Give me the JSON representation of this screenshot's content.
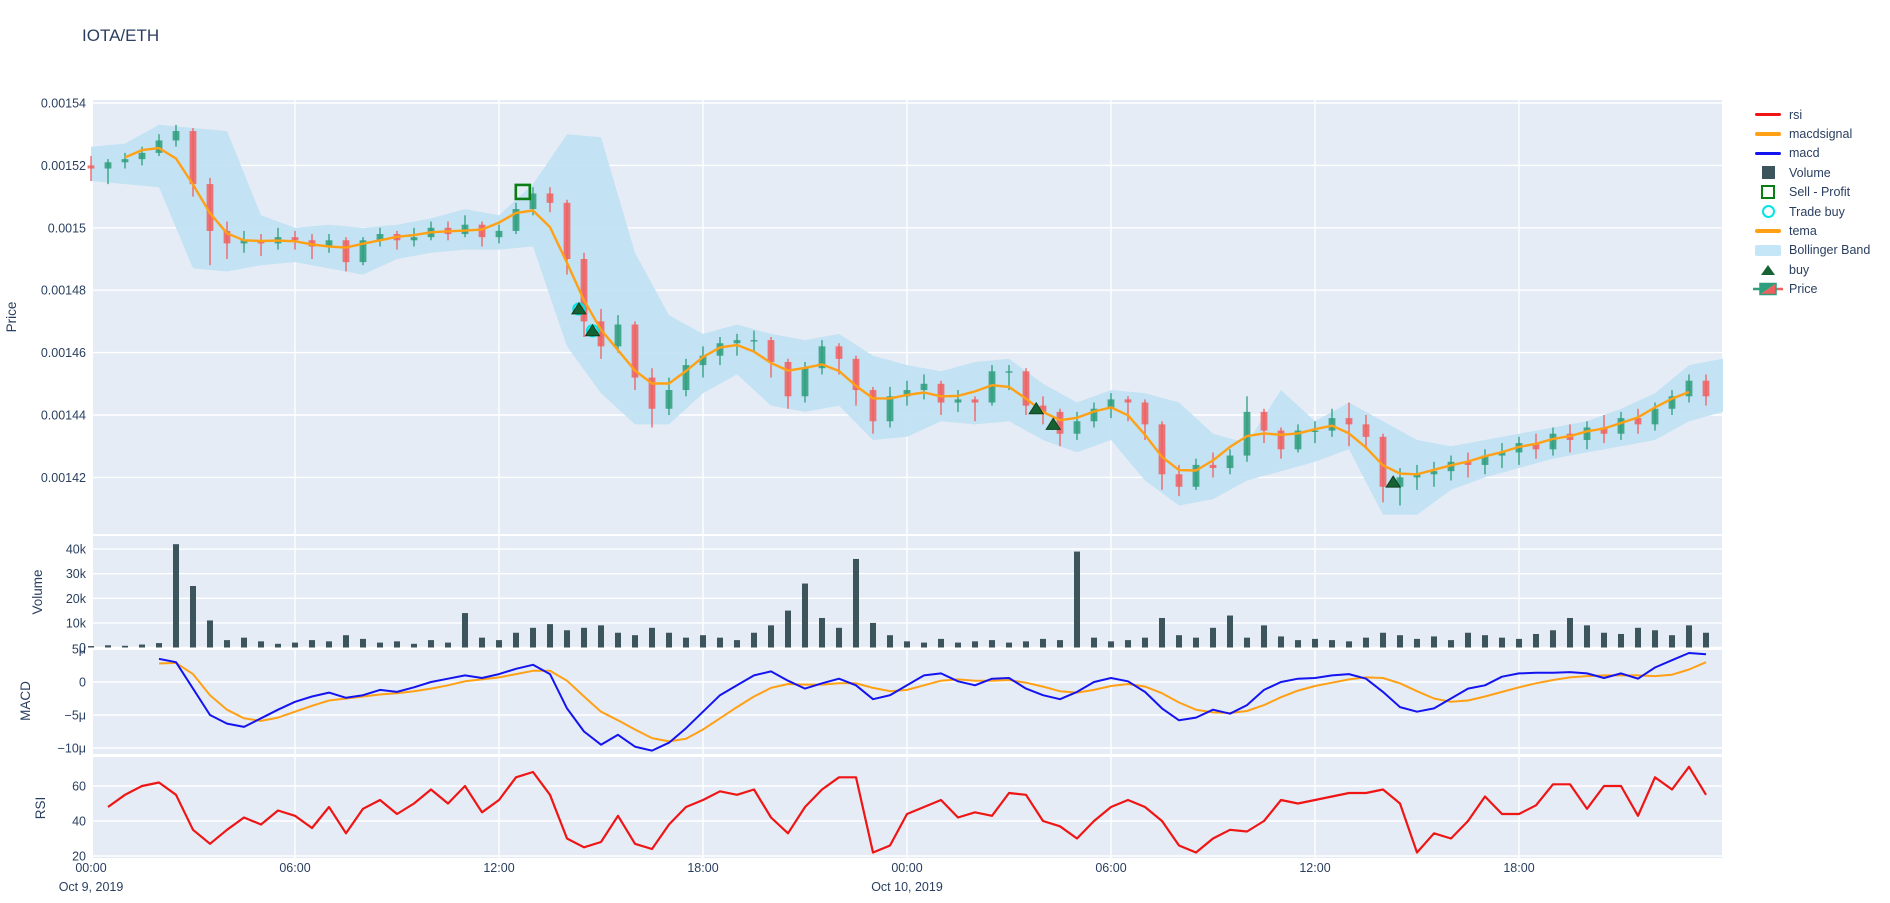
{
  "title": "IOTA/ETH",
  "colors": {
    "paper": "#ffffff",
    "pane_bg": "#e5ecf6",
    "grid": "#ffffff",
    "text": "#2a3f5f",
    "rsi": "#ef1515",
    "macd": "#1414f0",
    "macdsignal": "#ffa015",
    "tema": "#ffa015",
    "volume": "#3c545c",
    "candle_up": "#2e9e7c",
    "candle_down": "#f05f5f",
    "bollinger": "#bfe1f3",
    "sell_profit": "#0b7d15",
    "trade_buy": "#00e5e5",
    "buy": "#176233"
  },
  "x_axis": {
    "tick_labels": [
      "00:00",
      "06:00",
      "12:00",
      "18:00",
      "00:00",
      "06:00",
      "12:00",
      "18:00"
    ],
    "tick_hours": [
      0,
      6,
      12,
      18,
      24,
      30,
      36,
      42
    ],
    "date_labels": [
      {
        "text": "Oct 9, 2019",
        "t": 0
      },
      {
        "text": "Oct 10, 2019",
        "t": 24
      }
    ]
  },
  "price_axis": {
    "title": "Price",
    "tick_labels": [
      "0.00154",
      "0.00152",
      "0.0015",
      "0.00148",
      "0.00146",
      "0.00144",
      "0.00142"
    ],
    "tick_values": [
      1540,
      1520,
      1500,
      1480,
      1460,
      1440,
      1420
    ]
  },
  "volume_axis": {
    "title": "Volume",
    "tick_labels": [
      "40k",
      "30k",
      "20k",
      "10k",
      "0"
    ],
    "tick_values": [
      40000,
      30000,
      20000,
      10000,
      0
    ]
  },
  "macd_axis": {
    "title": "MACD",
    "tick_labels": [
      "5μ",
      "0",
      "−5μ",
      "−10μ"
    ],
    "tick_values": [
      5,
      0,
      -5,
      -10
    ]
  },
  "rsi_axis": {
    "title": "RSI",
    "tick_labels": [
      "60",
      "40",
      "20"
    ],
    "tick_values": [
      60,
      40,
      20
    ]
  },
  "legend": {
    "items": [
      {
        "id": "rsi",
        "label": "rsi",
        "swatch": "line",
        "color": "#ef1515"
      },
      {
        "id": "macdsignal",
        "label": "macdsignal",
        "swatch": "line",
        "color": "#ffa015"
      },
      {
        "id": "macd",
        "label": "macd",
        "swatch": "line",
        "color": "#1414f0"
      },
      {
        "id": "volume",
        "label": "Volume",
        "swatch": "filled-square",
        "color": "#3c545c"
      },
      {
        "id": "sell-profit",
        "label": "Sell - Profit",
        "swatch": "open-square",
        "color": "#0b7d15"
      },
      {
        "id": "trade-buy",
        "label": "Trade buy",
        "swatch": "open-circle",
        "color": "#00e5e5"
      },
      {
        "id": "tema",
        "label": "tema",
        "swatch": "line",
        "color": "#ffa015"
      },
      {
        "id": "bollinger-band",
        "label": "Bollinger Band",
        "swatch": "band",
        "color": "#c5e6f7"
      },
      {
        "id": "buy",
        "label": "buy",
        "swatch": "triangle-up",
        "color": "#176233"
      },
      {
        "id": "price",
        "label": "Price",
        "swatch": "candlestick",
        "color": "#2e9e7c"
      }
    ]
  },
  "chart_data": {
    "type": "candlestick-with-indicators",
    "title": "IOTA/ETH",
    "x_range_hours": [
      0,
      48
    ],
    "x_start_label": "Oct 9, 2019 00:00",
    "price_unit_scale": 1e-06,
    "subplots": [
      "Price",
      "Volume",
      "MACD",
      "RSI"
    ],
    "price_ylim": [
      1402,
      1546
    ],
    "volume_ylim": [
      0,
      46000
    ],
    "macd_ylim": [
      -11.5,
      5.5
    ],
    "rsi_ylim": [
      18,
      78
    ],
    "candles_t_step_hours": 0.5,
    "candles_ohlc": [
      [
        1520,
        1523,
        1515,
        1519
      ],
      [
        1519,
        1522,
        1514,
        1521
      ],
      [
        1521,
        1524,
        1519,
        1522
      ],
      [
        1522,
        1526,
        1520,
        1524
      ],
      [
        1524,
        1530,
        1523,
        1528
      ],
      [
        1528,
        1533,
        1526,
        1531
      ],
      [
        1531,
        1532,
        1510,
        1514
      ],
      [
        1514,
        1516,
        1488,
        1499
      ],
      [
        1499,
        1502,
        1490,
        1495
      ],
      [
        1495,
        1499,
        1492,
        1496
      ],
      [
        1496,
        1498,
        1491,
        1495
      ],
      [
        1495,
        1500,
        1493,
        1497
      ],
      [
        1497,
        1499,
        1493,
        1496
      ],
      [
        1496,
        1498,
        1490,
        1494
      ],
      [
        1494,
        1498,
        1492,
        1496
      ],
      [
        1496,
        1497,
        1486,
        1489
      ],
      [
        1489,
        1497,
        1488,
        1496
      ],
      [
        1496,
        1500,
        1494,
        1498
      ],
      [
        1498,
        1499,
        1493,
        1496
      ],
      [
        1496,
        1500,
        1494,
        1497
      ],
      [
        1497,
        1502,
        1496,
        1500
      ],
      [
        1500,
        1502,
        1496,
        1498
      ],
      [
        1498,
        1504,
        1497,
        1501
      ],
      [
        1501,
        1502,
        1494,
        1497
      ],
      [
        1497,
        1501,
        1495,
        1499
      ],
      [
        1499,
        1508,
        1498,
        1506
      ],
      [
        1506,
        1513,
        1504,
        1511
      ],
      [
        1511,
        1513,
        1505,
        1508
      ],
      [
        1508,
        1509,
        1485,
        1490
      ],
      [
        1490,
        1492,
        1465,
        1470
      ],
      [
        1470,
        1474,
        1458,
        1462
      ],
      [
        1462,
        1472,
        1460,
        1469
      ],
      [
        1469,
        1470,
        1448,
        1452
      ],
      [
        1452,
        1455,
        1436,
        1442
      ],
      [
        1442,
        1452,
        1440,
        1448
      ],
      [
        1448,
        1458,
        1446,
        1456
      ],
      [
        1456,
        1462,
        1452,
        1459
      ],
      [
        1459,
        1465,
        1456,
        1463
      ],
      [
        1463,
        1466,
        1459,
        1464
      ],
      [
        1464,
        1467,
        1460,
        1464
      ],
      [
        1464,
        1465,
        1452,
        1457
      ],
      [
        1457,
        1458,
        1442,
        1446
      ],
      [
        1446,
        1457,
        1444,
        1455
      ],
      [
        1455,
        1464,
        1453,
        1462
      ],
      [
        1462,
        1463,
        1453,
        1458
      ],
      [
        1458,
        1459,
        1443,
        1448
      ],
      [
        1448,
        1449,
        1434,
        1438
      ],
      [
        1438,
        1449,
        1436,
        1446
      ],
      [
        1446,
        1451,
        1443,
        1448
      ],
      [
        1448,
        1453,
        1445,
        1450
      ],
      [
        1450,
        1451,
        1440,
        1444
      ],
      [
        1444,
        1448,
        1441,
        1445
      ],
      [
        1445,
        1446,
        1438,
        1444
      ],
      [
        1444,
        1456,
        1443,
        1454
      ],
      [
        1454,
        1456,
        1448,
        1454
      ],
      [
        1454,
        1455,
        1440,
        1443
      ],
      [
        1443,
        1446,
        1437,
        1441
      ],
      [
        1441,
        1442,
        1430,
        1434
      ],
      [
        1434,
        1441,
        1432,
        1438
      ],
      [
        1438,
        1444,
        1436,
        1442
      ],
      [
        1442,
        1447,
        1439,
        1445
      ],
      [
        1445,
        1446,
        1438,
        1444
      ],
      [
        1444,
        1445,
        1432,
        1437
      ],
      [
        1437,
        1438,
        1416,
        1421
      ],
      [
        1421,
        1424,
        1414,
        1417
      ],
      [
        1417,
        1426,
        1416,
        1424
      ],
      [
        1424,
        1428,
        1420,
        1423
      ],
      [
        1423,
        1429,
        1421,
        1427
      ],
      [
        1427,
        1446,
        1425,
        1441
      ],
      [
        1441,
        1442,
        1431,
        1435
      ],
      [
        1435,
        1436,
        1426,
        1429
      ],
      [
        1429,
        1437,
        1428,
        1435
      ],
      [
        1435,
        1438,
        1431,
        1435
      ],
      [
        1435,
        1442,
        1433,
        1439
      ],
      [
        1439,
        1444,
        1430,
        1437
      ],
      [
        1437,
        1440,
        1429,
        1433
      ],
      [
        1433,
        1434,
        1412,
        1417
      ],
      [
        1417,
        1423,
        1411,
        1420
      ],
      [
        1420,
        1424,
        1416,
        1421
      ],
      [
        1421,
        1425,
        1417,
        1422
      ],
      [
        1422,
        1427,
        1419,
        1425
      ],
      [
        1425,
        1428,
        1420,
        1424
      ],
      [
        1424,
        1429,
        1421,
        1427
      ],
      [
        1427,
        1431,
        1423,
        1428
      ],
      [
        1428,
        1433,
        1424,
        1431
      ],
      [
        1431,
        1434,
        1426,
        1429
      ],
      [
        1429,
        1436,
        1427,
        1434
      ],
      [
        1434,
        1437,
        1428,
        1432
      ],
      [
        1432,
        1438,
        1429,
        1436
      ],
      [
        1436,
        1440,
        1431,
        1434
      ],
      [
        1434,
        1441,
        1432,
        1439
      ],
      [
        1439,
        1442,
        1434,
        1437
      ],
      [
        1437,
        1444,
        1435,
        1442
      ],
      [
        1442,
        1448,
        1440,
        1446
      ],
      [
        1446,
        1453,
        1444,
        1451
      ],
      [
        1451,
        1453,
        1443,
        1446
      ]
    ],
    "volume_values": [
      600,
      900,
      700,
      1200,
      1800,
      42000,
      25000,
      11000,
      3000,
      4000,
      2500,
      1500,
      2000,
      3000,
      2500,
      5000,
      3500,
      2000,
      2500,
      1500,
      3000,
      2000,
      14000,
      4000,
      3000,
      6000,
      8000,
      9500,
      7000,
      8000,
      9000,
      6000,
      5000,
      8000,
      6000,
      4000,
      5000,
      4000,
      3000,
      6000,
      9000,
      15000,
      26000,
      12000,
      8000,
      36000,
      10000,
      5000,
      2500,
      2000,
      3500,
      2000,
      2500,
      3000,
      2000,
      2500,
      3500,
      3000,
      39000,
      4000,
      2500,
      3000,
      4000,
      12000,
      5000,
      4000,
      8000,
      13000,
      4000,
      9000,
      4500,
      3000,
      3500,
      3000,
      2500,
      4000,
      6000,
      5000,
      3500,
      4500,
      3000,
      6000,
      5000,
      4000,
      3500,
      5500,
      7000,
      12000,
      9000,
      6000,
      5500,
      8000,
      7000,
      5000,
      9000,
      6000
    ],
    "bollinger_t_step_hours": 1,
    "bollinger_upper_lower": [
      [
        1526,
        1515
      ],
      [
        1527,
        1514
      ],
      [
        1533,
        1513
      ],
      [
        1532,
        1487
      ],
      [
        1531,
        1486
      ],
      [
        1504,
        1488
      ],
      [
        1500,
        1489
      ],
      [
        1501,
        1487
      ],
      [
        1500,
        1485
      ],
      [
        1501,
        1490
      ],
      [
        1503,
        1492
      ],
      [
        1506,
        1493
      ],
      [
        1504,
        1493
      ],
      [
        1514,
        1494
      ],
      [
        1530,
        1462
      ],
      [
        1529,
        1447
      ],
      [
        1492,
        1437
      ],
      [
        1472,
        1437
      ],
      [
        1466,
        1447
      ],
      [
        1469,
        1453
      ],
      [
        1466,
        1443
      ],
      [
        1464,
        1441
      ],
      [
        1466,
        1443
      ],
      [
        1459,
        1432
      ],
      [
        1456,
        1433
      ],
      [
        1454,
        1438
      ],
      [
        1457,
        1437
      ],
      [
        1458,
        1438
      ],
      [
        1450,
        1432
      ],
      [
        1444,
        1428
      ],
      [
        1448,
        1432
      ],
      [
        1447,
        1419
      ],
      [
        1444,
        1411
      ],
      [
        1434,
        1413
      ],
      [
        1431,
        1419
      ],
      [
        1448,
        1422
      ],
      [
        1438,
        1425
      ],
      [
        1444,
        1429
      ],
      [
        1438,
        1408
      ],
      [
        1432,
        1408
      ],
      [
        1430,
        1416
      ],
      [
        1432,
        1420
      ],
      [
        1434,
        1423
      ],
      [
        1436,
        1426
      ],
      [
        1438,
        1428
      ],
      [
        1442,
        1430
      ],
      [
        1447,
        1432
      ],
      [
        1456,
        1438
      ],
      [
        1458,
        1441
      ]
    ],
    "macd_t_start_hours": 2,
    "macd_t_step_hours": 0.5,
    "macd_values_micro": [
      3.5,
      3.0,
      -1.0,
      -5.0,
      -6.3,
      -6.8,
      -5.5,
      -4.2,
      -3.0,
      -2.2,
      -1.6,
      -2.4,
      -2.0,
      -1.2,
      -1.5,
      -0.8,
      0.0,
      0.5,
      1.0,
      0.6,
      1.2,
      2.0,
      2.6,
      1.2,
      -4.0,
      -7.5,
      -9.5,
      -8.0,
      -9.8,
      -10.4,
      -9.2,
      -7.0,
      -4.5,
      -2.0,
      -0.5,
      1.0,
      1.6,
      0.2,
      -1.0,
      -0.2,
      0.5,
      -0.5,
      -2.6,
      -2.0,
      -0.5,
      1.0,
      1.3,
      0.1,
      -0.5,
      0.5,
      0.6,
      -1.0,
      -2.0,
      -2.6,
      -1.5,
      0.0,
      0.6,
      0.1,
      -1.5,
      -4.0,
      -5.8,
      -5.4,
      -4.2,
      -4.8,
      -3.5,
      -1.2,
      0.0,
      0.5,
      0.6,
      1.0,
      1.2,
      0.5,
      -1.5,
      -3.8,
      -4.5,
      -4.0,
      -2.5,
      -1.0,
      -0.5,
      0.8,
      1.3,
      1.4,
      1.4,
      1.5,
      1.3,
      0.6,
      1.3,
      0.5,
      2.2,
      3.3,
      4.4,
      4.2
    ],
    "macdsignal_values_micro": [
      2.8,
      2.9,
      1.2,
      -2.0,
      -4.2,
      -5.5,
      -5.9,
      -5.4,
      -4.5,
      -3.6,
      -2.8,
      -2.5,
      -2.2,
      -1.9,
      -1.7,
      -1.4,
      -1.0,
      -0.5,
      0.1,
      0.4,
      0.7,
      1.2,
      1.7,
      1.7,
      0.2,
      -2.2,
      -4.5,
      -5.8,
      -7.2,
      -8.5,
      -9.0,
      -8.6,
      -7.2,
      -5.5,
      -3.8,
      -2.2,
      -0.9,
      -0.3,
      -0.4,
      -0.4,
      -0.2,
      -0.2,
      -0.9,
      -1.4,
      -1.2,
      -0.5,
      0.2,
      0.4,
      0.2,
      0.2,
      0.3,
      -0.1,
      -0.7,
      -1.4,
      -1.6,
      -1.2,
      -0.6,
      -0.3,
      -0.7,
      -1.7,
      -3.1,
      -4.2,
      -4.6,
      -4.7,
      -4.4,
      -3.5,
      -2.3,
      -1.3,
      -0.6,
      -0.1,
      0.4,
      0.7,
      0.6,
      -0.2,
      -1.4,
      -2.5,
      -3.0,
      -2.8,
      -2.2,
      -1.5,
      -0.8,
      -0.2,
      0.3,
      0.7,
      0.9,
      1.0,
      1.0,
      1.0,
      0.9,
      1.1,
      1.9,
      3.0
    ],
    "rsi_t_start_hours": 0.5,
    "rsi_t_step_hours": 0.5,
    "rsi_values": [
      48,
      55,
      60,
      62,
      55,
      35,
      27,
      35,
      42,
      38,
      46,
      43,
      36,
      48,
      33,
      47,
      52,
      44,
      50,
      58,
      50,
      60,
      45,
      52,
      65,
      68,
      55,
      30,
      25,
      28,
      43,
      27,
      24,
      38,
      48,
      52,
      57,
      55,
      58,
      42,
      33,
      48,
      58,
      65,
      65,
      22,
      26,
      44,
      48,
      52,
      42,
      45,
      43,
      56,
      55,
      40,
      37,
      30,
      40,
      48,
      52,
      48,
      40,
      26,
      22,
      30,
      35,
      34,
      40,
      52,
      50,
      52,
      54,
      56,
      56,
      58,
      50,
      22,
      33,
      30,
      40,
      54,
      44,
      44,
      49,
      61,
      61,
      47,
      60,
      60,
      43,
      65,
      58,
      71,
      55
    ],
    "markers": {
      "sell_profit": [
        {
          "t": 12.7,
          "price": 1511.5
        }
      ],
      "trade_buy": [
        {
          "t": 14.35,
          "price": 1474
        },
        {
          "t": 14.75,
          "price": 1467
        }
      ],
      "buy": [
        {
          "t": 14.35,
          "price": 1474
        },
        {
          "t": 14.75,
          "price": 1467
        },
        {
          "t": 27.8,
          "price": 1442
        },
        {
          "t": 28.3,
          "price": 1437
        },
        {
          "t": 38.3,
          "price": 1418.5
        }
      ]
    }
  }
}
